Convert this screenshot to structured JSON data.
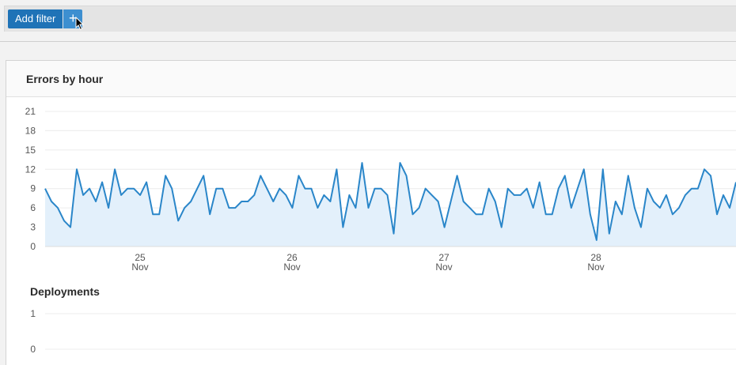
{
  "filter_bar": {
    "add_filter_label": "Add filter",
    "plus_label": "+"
  },
  "errors_panel": {
    "title": "Errors by hour"
  },
  "deployments": {
    "title": "Deployments"
  },
  "chart_data": [
    {
      "type": "area",
      "title": "Errors by hour",
      "ylim": [
        0,
        21
      ],
      "yticks": [
        0,
        3,
        6,
        9,
        12,
        15,
        18,
        21
      ],
      "x_ticks": [
        {
          "day": "25",
          "month": "Nov"
        },
        {
          "day": "26",
          "month": "Nov"
        },
        {
          "day": "27",
          "month": "Nov"
        },
        {
          "day": "28",
          "month": "Nov"
        }
      ],
      "series": [
        {
          "color": "#2a86c9",
          "fill": "#e3f0fb",
          "values": [
            9,
            7,
            6,
            4,
            3,
            12,
            8,
            9,
            7,
            10,
            6,
            12,
            8,
            9,
            9,
            8,
            10,
            5,
            5,
            11,
            9,
            4,
            6,
            7,
            9,
            11,
            5,
            9,
            9,
            6,
            6,
            7,
            7,
            8,
            11,
            9,
            7,
            9,
            8,
            6,
            11,
            9,
            9,
            6,
            8,
            7,
            12,
            3,
            8,
            6,
            13,
            6,
            9,
            9,
            8,
            2,
            13,
            11,
            5,
            6,
            9,
            8,
            7,
            3,
            7,
            11,
            7,
            6,
            5,
            5,
            9,
            7,
            3,
            9,
            8,
            8,
            9,
            6,
            10,
            5,
            5,
            9,
            11,
            6,
            9,
            12,
            5,
            1,
            12,
            2,
            7,
            5,
            11,
            6,
            3,
            9,
            7,
            6,
            8,
            5,
            6,
            8,
            9,
            9,
            12,
            11,
            5,
            8,
            6,
            10
          ]
        }
      ]
    },
    {
      "type": "line",
      "title": "Deployments",
      "ylim": [
        0,
        1
      ],
      "yticks": [
        0,
        1
      ],
      "series": []
    }
  ]
}
